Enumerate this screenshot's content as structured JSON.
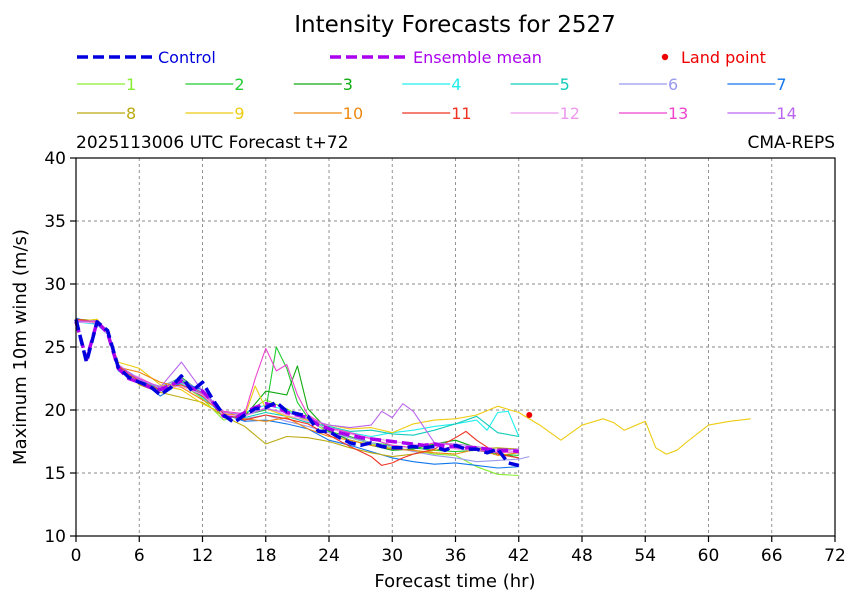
{
  "chart_data": {
    "type": "line",
    "title": "Intensity Forecasts for 2527",
    "subtitle_left": "2025113006 UTC Forecast t+72",
    "subtitle_right": "CMA-REPS",
    "xlabel": "Forecast time (hr)",
    "ylabel": "Maximum 10m wind (m/s)",
    "xlim": [
      0,
      72
    ],
    "ylim": [
      10,
      40
    ],
    "xticks": [
      0,
      6,
      12,
      18,
      24,
      30,
      36,
      42,
      48,
      54,
      60,
      66,
      72
    ],
    "yticks": [
      10,
      15,
      20,
      25,
      30,
      35,
      40
    ],
    "grid": true,
    "legend": {
      "control": {
        "label": "Control",
        "color": "#0000dd"
      },
      "ensemble_mean": {
        "label": "Ensemble mean",
        "color": "#aa00ee"
      },
      "land_point": {
        "label": "Land point",
        "color": "#ee0000"
      },
      "members": [
        {
          "label": "1",
          "color": "#88ee33"
        },
        {
          "label": "2",
          "color": "#22cc33"
        },
        {
          "label": "3",
          "color": "#11aa11"
        },
        {
          "label": "4",
          "color": "#22eeee"
        },
        {
          "label": "5",
          "color": "#11ccbb"
        },
        {
          "label": "6",
          "color": "#9999ee"
        },
        {
          "label": "7",
          "color": "#1177ee"
        },
        {
          "label": "8",
          "color": "#bbaa11"
        },
        {
          "label": "9",
          "color": "#eecc11"
        },
        {
          "label": "10",
          "color": "#ee8811"
        },
        {
          "label": "11",
          "color": "#ee3322"
        },
        {
          "label": "12",
          "color": "#ee99ee"
        },
        {
          "label": "13",
          "color": "#ee44cc"
        },
        {
          "label": "14",
          "color": "#bb66ee"
        }
      ]
    },
    "control": {
      "x": [
        0,
        1,
        2,
        3,
        4,
        5,
        6,
        7,
        8,
        9,
        10,
        11,
        12,
        13,
        14,
        15,
        16,
        17,
        18,
        19,
        20,
        21,
        22,
        23,
        24,
        25,
        26,
        27,
        28,
        29,
        30,
        31,
        32,
        33,
        34,
        35,
        36,
        37,
        38,
        39,
        40,
        41,
        42
      ],
      "y": [
        27.2,
        23.8,
        27.0,
        26.3,
        23.4,
        22.6,
        22.2,
        21.9,
        21.2,
        21.8,
        22.7,
        21.5,
        22.2,
        20.8,
        19.6,
        19.0,
        19.6,
        20.1,
        20.2,
        20.6,
        19.9,
        19.7,
        19.5,
        18.3,
        18.3,
        17.8,
        17.4,
        17.2,
        17.4,
        17.1,
        17.0,
        17.0,
        17.1,
        17.0,
        17.1,
        16.8,
        17.2,
        16.9,
        16.9,
        16.6,
        16.9,
        15.8,
        15.6
      ]
    },
    "ensemble_mean": {
      "x": [
        0,
        1,
        2,
        3,
        4,
        5,
        6,
        7,
        8,
        9,
        10,
        11,
        12,
        13,
        14,
        15,
        16,
        17,
        18,
        19,
        20,
        21,
        22,
        23,
        24,
        25,
        26,
        27,
        28,
        29,
        30,
        31,
        32,
        33,
        34,
        35,
        36,
        37,
        38,
        39,
        40,
        41,
        42
      ],
      "y": [
        27.0,
        24.0,
        27.0,
        26.1,
        23.3,
        22.5,
        22.2,
        21.8,
        21.6,
        22.0,
        22.3,
        21.7,
        21.5,
        20.6,
        19.5,
        19.3,
        19.8,
        20.2,
        20.5,
        20.3,
        19.8,
        19.6,
        19.4,
        18.8,
        18.5,
        18.2,
        18.0,
        17.8,
        17.7,
        17.6,
        17.5,
        17.4,
        17.3,
        17.2,
        17.3,
        17.1,
        17.1,
        17.0,
        17.0,
        16.9,
        16.8,
        16.8,
        16.7
      ]
    },
    "members": [
      {
        "name": "1",
        "x": [
          0,
          2,
          3,
          4,
          6,
          8,
          10,
          12,
          14,
          16,
          18,
          20,
          22,
          24,
          26,
          28,
          30,
          32,
          34,
          36,
          38,
          40,
          42
        ],
        "y": [
          27.0,
          27.2,
          26.1,
          23.5,
          22.2,
          21.5,
          22.1,
          20.9,
          19.2,
          19.7,
          20.8,
          20.1,
          19.2,
          18.2,
          17.8,
          17.3,
          17.0,
          16.8,
          16.5,
          16.4,
          15.5,
          14.9,
          14.8
        ]
      },
      {
        "name": "2",
        "x": [
          0,
          2,
          3,
          4,
          6,
          8,
          10,
          12,
          14,
          16,
          18,
          19,
          20,
          21,
          22,
          24,
          26,
          28,
          30,
          32,
          34,
          36,
          38,
          40,
          42
        ],
        "y": [
          27.1,
          26.9,
          26.0,
          23.3,
          22.4,
          21.7,
          22.4,
          21.2,
          19.5,
          19.6,
          20.0,
          25.0,
          23.3,
          20.6,
          19.4,
          18.3,
          17.9,
          17.4,
          17.2,
          17.0,
          16.8,
          16.7,
          16.8,
          16.5,
          16.4
        ]
      },
      {
        "name": "3",
        "x": [
          0,
          2,
          3,
          4,
          6,
          8,
          10,
          12,
          14,
          16,
          18,
          20,
          21,
          22,
          24,
          26,
          28,
          30,
          32,
          34,
          36,
          38,
          40,
          42
        ],
        "y": [
          27.2,
          27.1,
          26.3,
          23.4,
          22.3,
          21.8,
          22.6,
          21.3,
          19.4,
          19.5,
          21.5,
          21.2,
          23.5,
          20.1,
          18.3,
          17.6,
          17.2,
          16.8,
          16.9,
          17.3,
          17.6,
          17.0,
          16.6,
          16.2
        ]
      },
      {
        "name": "4",
        "x": [
          0,
          2,
          3,
          4,
          6,
          8,
          10,
          12,
          14,
          16,
          18,
          20,
          22,
          24,
          26,
          28,
          30,
          32,
          34,
          36,
          38,
          39,
          40,
          41,
          42
        ],
        "y": [
          27.0,
          26.8,
          26.0,
          23.1,
          22.2,
          21.6,
          22.1,
          21.0,
          19.6,
          19.8,
          20.4,
          20.0,
          19.1,
          18.6,
          18.2,
          17.9,
          18.2,
          18.4,
          18.7,
          18.9,
          19.2,
          18.4,
          19.8,
          19.9,
          17.9
        ]
      },
      {
        "name": "5",
        "x": [
          0,
          2,
          3,
          4,
          6,
          8,
          10,
          12,
          14,
          16,
          18,
          20,
          22,
          24,
          26,
          28,
          30,
          32,
          34,
          36,
          38,
          40,
          42
        ],
        "y": [
          27.1,
          27.0,
          26.2,
          23.2,
          22.4,
          21.7,
          22.3,
          21.1,
          19.6,
          19.4,
          19.8,
          19.5,
          19.0,
          18.7,
          18.3,
          18.4,
          18.1,
          18.0,
          18.4,
          18.9,
          19.5,
          18.2,
          17.9
        ]
      },
      {
        "name": "6",
        "x": [
          0,
          2,
          3,
          4,
          6,
          8,
          10,
          12,
          14,
          16,
          18,
          20,
          22,
          24,
          26,
          28,
          30,
          32,
          34,
          36,
          38,
          40,
          42,
          43
        ],
        "y": [
          27.0,
          26.9,
          26.1,
          23.3,
          22.3,
          21.9,
          22.5,
          21.4,
          19.5,
          19.3,
          19.6,
          19.1,
          18.7,
          18.2,
          17.8,
          17.4,
          17.1,
          16.7,
          16.4,
          16.2,
          15.9,
          16.0,
          16.1,
          16.3
        ]
      },
      {
        "name": "7",
        "x": [
          0,
          2,
          3,
          4,
          6,
          8,
          10,
          12,
          14,
          16,
          18,
          20,
          22,
          24,
          26,
          28,
          30,
          32,
          34,
          36,
          38,
          40,
          42
        ],
        "y": [
          27.3,
          26.8,
          26.0,
          23.5,
          22.5,
          21.1,
          22.2,
          21.6,
          19.7,
          19.1,
          19.2,
          18.9,
          18.5,
          17.6,
          17.2,
          16.7,
          16.2,
          15.9,
          15.7,
          15.8,
          15.6,
          15.4,
          15.5
        ]
      },
      {
        "name": "8",
        "x": [
          0,
          2,
          3,
          4,
          6,
          8,
          10,
          12,
          14,
          16,
          18,
          20,
          22,
          24,
          26,
          28,
          30,
          32,
          34,
          36,
          38,
          40,
          42
        ],
        "y": [
          27.2,
          27.1,
          26.1,
          23.6,
          22.0,
          21.4,
          21.0,
          20.6,
          19.5,
          18.7,
          17.3,
          17.9,
          17.8,
          17.5,
          17.0,
          16.6,
          16.3,
          16.5,
          16.8,
          17.1,
          16.9,
          17.0,
          16.9
        ]
      },
      {
        "name": "9",
        "x": [
          0,
          2,
          3,
          4,
          6,
          8,
          10,
          12,
          14,
          16,
          17,
          18,
          20,
          22,
          24,
          26,
          28,
          30,
          32,
          34,
          36,
          38,
          40,
          42,
          44,
          46,
          48,
          50,
          51,
          52,
          54,
          55,
          56,
          57,
          58,
          60,
          62,
          64
        ],
        "y": [
          27.0,
          27.2,
          26.2,
          23.8,
          23.3,
          22.0,
          21.6,
          20.5,
          19.7,
          19.5,
          21.9,
          20.1,
          19.5,
          19.2,
          18.8,
          18.5,
          18.6,
          18.2,
          18.9,
          19.2,
          19.3,
          19.6,
          20.3,
          19.8,
          18.8,
          17.6,
          18.8,
          19.3,
          19.0,
          18.4,
          19.1,
          17.0,
          16.5,
          16.8,
          17.5,
          18.8,
          19.1,
          19.3
        ]
      },
      {
        "name": "10",
        "x": [
          0,
          2,
          3,
          4,
          6,
          8,
          10,
          12,
          14,
          16,
          18,
          20,
          22,
          24,
          26,
          28,
          30,
          32,
          34,
          36,
          38,
          40,
          42
        ],
        "y": [
          27.1,
          26.9,
          26.2,
          23.4,
          23.0,
          22.2,
          21.8,
          20.8,
          19.9,
          19.3,
          19.1,
          19.4,
          18.5,
          17.9,
          17.6,
          17.2,
          16.9,
          16.8,
          16.6,
          16.5,
          16.9,
          16.4,
          16.6
        ]
      },
      {
        "name": "11",
        "x": [
          0,
          2,
          3,
          4,
          6,
          8,
          10,
          12,
          14,
          16,
          18,
          20,
          22,
          24,
          26,
          28,
          29,
          30,
          31,
          32,
          34,
          36,
          37,
          38,
          40,
          42
        ],
        "y": [
          27.2,
          27.0,
          26.3,
          23.5,
          22.3,
          21.6,
          22.0,
          21.1,
          19.7,
          19.2,
          19.6,
          19.3,
          18.9,
          18.0,
          17.1,
          16.3,
          15.6,
          15.8,
          16.2,
          16.5,
          16.9,
          17.8,
          18.3,
          17.6,
          16.5,
          16.2
        ]
      },
      {
        "name": "12",
        "x": [
          0,
          2,
          3,
          4,
          6,
          8,
          10,
          12,
          14,
          16,
          18,
          20,
          22,
          24,
          26,
          28,
          30,
          32,
          34,
          36,
          38,
          40,
          42
        ],
        "y": [
          27.0,
          26.9,
          26.0,
          23.2,
          22.6,
          21.7,
          21.9,
          21.2,
          19.6,
          19.5,
          20.2,
          19.6,
          19.1,
          18.5,
          18.1,
          17.8,
          17.5,
          17.3,
          17.1,
          16.9,
          16.8,
          16.7,
          16.9
        ]
      },
      {
        "name": "13",
        "x": [
          0,
          2,
          3,
          4,
          6,
          8,
          10,
          12,
          14,
          16,
          17,
          18,
          19,
          20,
          21,
          22,
          24,
          26,
          28,
          30,
          32,
          34,
          36,
          38,
          40,
          42
        ],
        "y": [
          27.1,
          27.0,
          26.2,
          23.3,
          22.5,
          21.8,
          22.2,
          21.3,
          19.9,
          19.7,
          22.5,
          24.9,
          23.1,
          23.6,
          21.2,
          19.6,
          18.6,
          18.2,
          17.7,
          17.2,
          17.0,
          17.4,
          17.2,
          16.8,
          16.6,
          16.7
        ]
      },
      {
        "name": "14",
        "x": [
          0,
          2,
          3,
          4,
          6,
          8,
          10,
          12,
          14,
          16,
          18,
          20,
          22,
          24,
          26,
          28,
          29,
          30,
          31,
          32,
          34,
          36,
          38,
          40,
          42
        ],
        "y": [
          27.0,
          27.1,
          26.3,
          23.6,
          22.4,
          21.8,
          23.8,
          21.5,
          19.8,
          19.6,
          20.1,
          19.8,
          19.3,
          18.8,
          18.6,
          18.8,
          19.9,
          19.4,
          20.5,
          19.9,
          17.4,
          17.3,
          17.1,
          16.8,
          16.9
        ]
      }
    ],
    "land_points": [
      {
        "x": 43,
        "y": 19.6
      }
    ]
  }
}
